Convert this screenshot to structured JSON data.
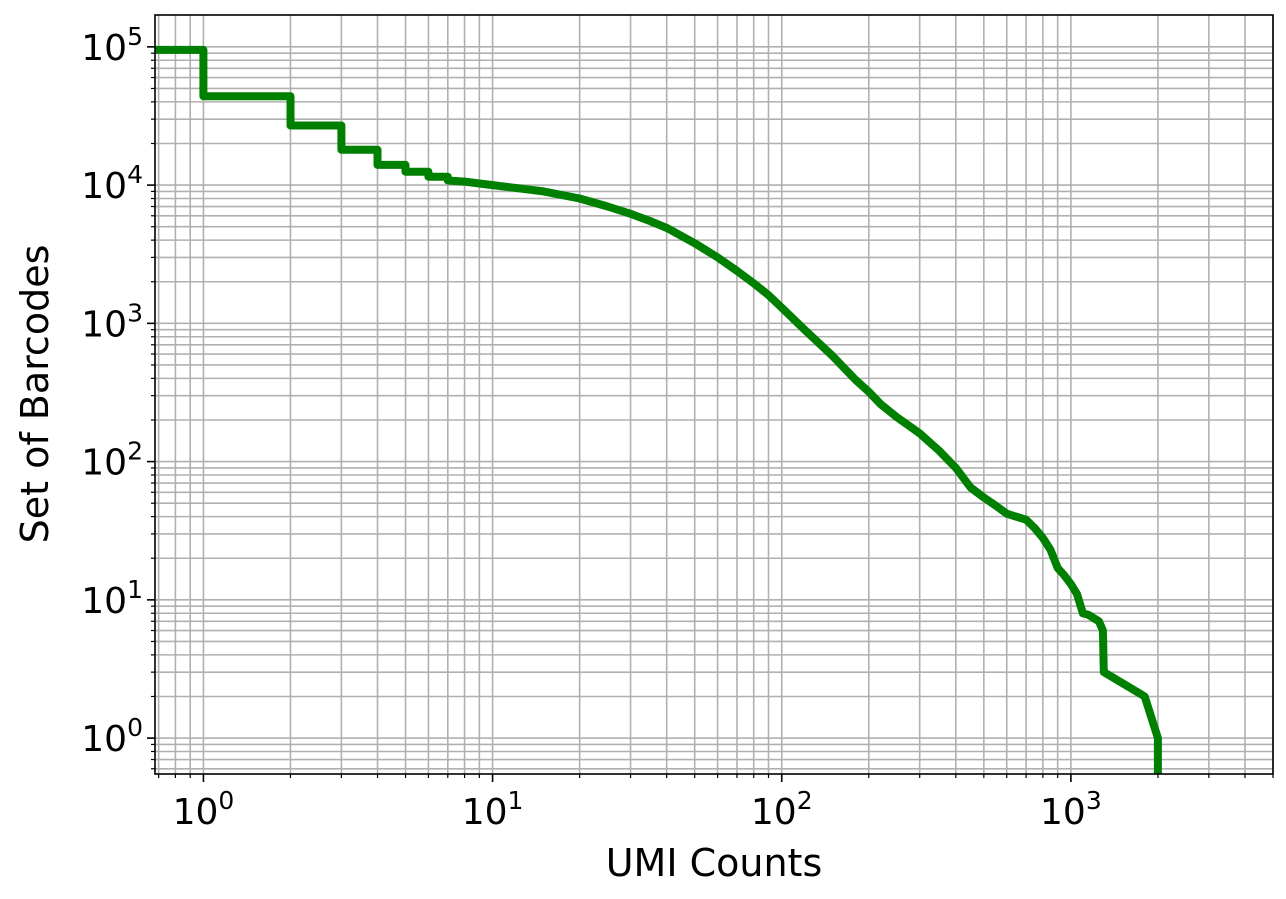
{
  "chart_data": {
    "type": "line",
    "title": "",
    "xlabel": "UMI Counts",
    "ylabel": "Set of Barcodes",
    "xscale": "log",
    "yscale": "log",
    "xlim": [
      0.68,
      5000
    ],
    "ylim": [
      0.55,
      170000
    ],
    "grid": "major and minor",
    "x_tick_labels": [
      {
        "base": "10",
        "exp": "0"
      },
      {
        "base": "10",
        "exp": "1"
      },
      {
        "base": "10",
        "exp": "2"
      },
      {
        "base": "10",
        "exp": "3"
      }
    ],
    "y_tick_labels": [
      {
        "base": "10",
        "exp": "0"
      },
      {
        "base": "10",
        "exp": "1"
      },
      {
        "base": "10",
        "exp": "2"
      },
      {
        "base": "10",
        "exp": "3"
      },
      {
        "base": "10",
        "exp": "4"
      },
      {
        "base": "10",
        "exp": "5"
      }
    ],
    "series": [
      {
        "color": "#008000",
        "style": "steps",
        "points": [
          [
            0.68,
            95000
          ],
          [
            1,
            95000
          ],
          [
            1,
            44000
          ],
          [
            2,
            44000
          ],
          [
            2,
            27000
          ],
          [
            3,
            27000
          ],
          [
            3,
            18000
          ],
          [
            4,
            18000
          ],
          [
            4,
            14000
          ],
          [
            5,
            14000
          ],
          [
            5,
            12500
          ],
          [
            6,
            12500
          ],
          [
            6,
            11500
          ],
          [
            7,
            11500
          ],
          [
            7,
            10800
          ],
          [
            8,
            10600
          ],
          [
            10,
            10000
          ],
          [
            15,
            9000
          ],
          [
            20,
            8000
          ],
          [
            25,
            7000
          ],
          [
            30,
            6200
          ],
          [
            35,
            5500
          ],
          [
            40,
            4900
          ],
          [
            50,
            3800
          ],
          [
            60,
            3000
          ],
          [
            70,
            2400
          ],
          [
            80,
            1950
          ],
          [
            90,
            1600
          ],
          [
            100,
            1300
          ],
          [
            120,
            900
          ],
          [
            150,
            580
          ],
          [
            180,
            390
          ],
          [
            200,
            320
          ],
          [
            220,
            260
          ],
          [
            250,
            210
          ],
          [
            300,
            160
          ],
          [
            350,
            120
          ],
          [
            400,
            90
          ],
          [
            450,
            65
          ],
          [
            500,
            55
          ],
          [
            550,
            48
          ],
          [
            600,
            42
          ],
          [
            700,
            38
          ],
          [
            750,
            33
          ],
          [
            800,
            28
          ],
          [
            850,
            23
          ],
          [
            900,
            17
          ],
          [
            950,
            15
          ],
          [
            1000,
            13
          ],
          [
            1050,
            11
          ],
          [
            1100,
            8
          ],
          [
            1150,
            7.8
          ],
          [
            1250,
            7
          ],
          [
            1290,
            6
          ],
          [
            1300,
            3
          ],
          [
            1800,
            2
          ],
          [
            2000,
            1
          ],
          [
            2000,
            0.55
          ]
        ]
      }
    ]
  }
}
